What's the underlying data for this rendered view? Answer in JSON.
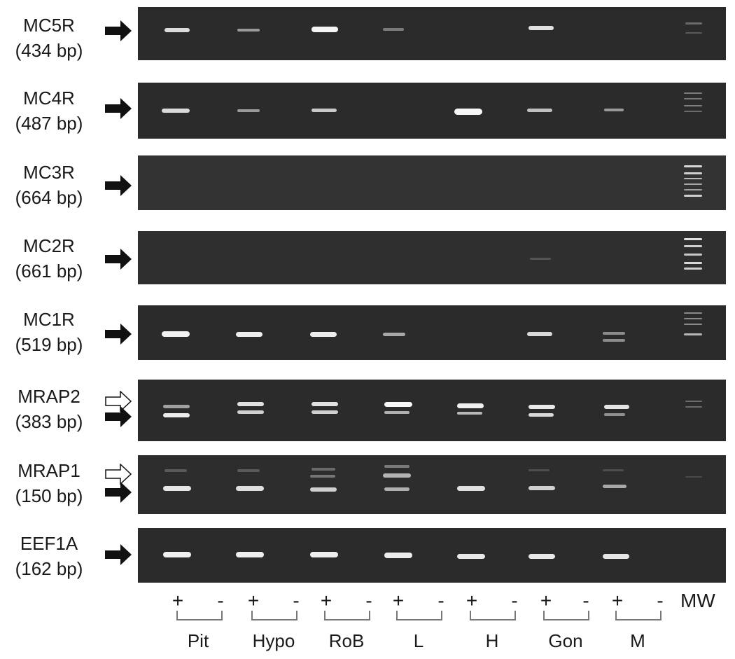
{
  "figure": {
    "genes": [
      {
        "name": "MC5R",
        "size": "(434 bp)"
      },
      {
        "name": "MC4R",
        "size": "(487 bp)"
      },
      {
        "name": "MC3R",
        "size": "(664 bp)"
      },
      {
        "name": "MC2R",
        "size": "(661 bp)"
      },
      {
        "name": "MC1R",
        "size": "(519 bp)"
      },
      {
        "name": "MRAP2",
        "size": "(383 bp)"
      },
      {
        "name": "MRAP1",
        "size": "(150 bp)"
      },
      {
        "name": "EEF1A",
        "size": "(162 bp)"
      }
    ],
    "lane_signs": [
      "+",
      "-",
      "+",
      "-",
      "+",
      "-",
      "+",
      "-",
      "+",
      "-",
      "+",
      "-",
      "+",
      "-"
    ],
    "marker_label": "MW",
    "tissues": [
      "Pit",
      "Hypo",
      "RoB",
      "L",
      "H",
      "Gon",
      "M"
    ],
    "colors": {
      "gel": "#2b2b2b",
      "band": "#f2f2f2",
      "text": "#1a1a1a"
    }
  }
}
